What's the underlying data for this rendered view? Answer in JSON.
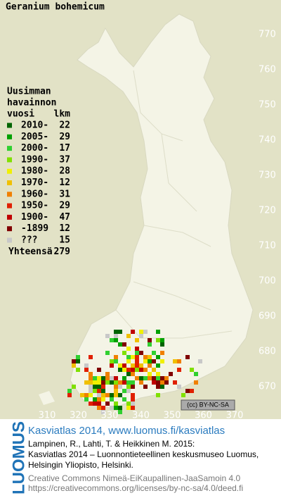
{
  "map": {
    "title": "Geranium bohemicum",
    "legend": {
      "header": [
        "Uusimman",
        "havainnon",
        "vuosi"
      ],
      "count_header": "lkm",
      "items": [
        {
          "label": "2010-",
          "count": "22",
          "color": "#006400"
        },
        {
          "label": "2005-",
          "count": "29",
          "color": "#00a000"
        },
        {
          "label": "2000-",
          "count": "17",
          "color": "#30d030"
        },
        {
          "label": "1990-",
          "count": "37",
          "color": "#80e000"
        },
        {
          "label": "1980-",
          "count": "28",
          "color": "#f0f000"
        },
        {
          "label": "1970-",
          "count": "12",
          "color": "#f0c000"
        },
        {
          "label": "1960-",
          "count": "31",
          "color": "#f08000"
        },
        {
          "label": "1950-",
          "count": "29",
          "color": "#e02000"
        },
        {
          "label": "1900-",
          "count": "47",
          "color": "#c00000"
        },
        {
          "label": "-1899",
          "count": "12",
          "color": "#800000"
        },
        {
          "label": "???",
          "count": "15",
          "color": "#c8c8c8"
        }
      ],
      "total_label": "Yhteensä",
      "total": "279"
    },
    "yticks": [
      770,
      760,
      750,
      740,
      730,
      720,
      710,
      700,
      690,
      680,
      670
    ],
    "xticks": [
      310,
      320,
      330,
      340,
      350,
      360,
      370
    ],
    "license_badge": "(cc) BY-NC-SA"
  },
  "footer": {
    "brand": "LUOMUS",
    "heading": "Kasviatlas 2014, www.luomus.fi/kasviatlas",
    "citation": [
      "Lampinen, R., Lahti, T. & Heikkinen M. 2015:",
      "Kasviatlas 2014 – Luonnontieteellinen keskusmuseo Luomus,",
      "Helsingin Yliopisto, Helsinki."
    ],
    "license": [
      "Creative Commons Nimeä-EiKaupallinen-JaaSamoin 4.0",
      "https://creativecommons.org/licenses/by-nc-sa/4.0/deed.fi"
    ]
  }
}
